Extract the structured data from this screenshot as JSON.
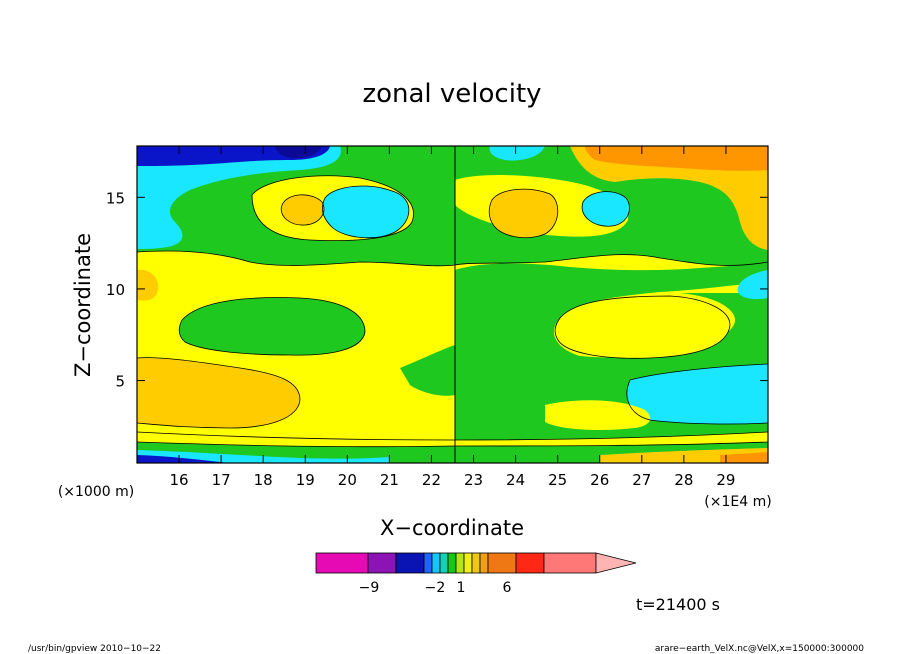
{
  "chart_data": {
    "type": "heatmap",
    "title": "zonal velocity",
    "xlabel": "X−coordinate",
    "ylabel": "Z−coordinate",
    "x_unit_label": "(×1E4 m)",
    "y_unit_label": "(×1000 m)",
    "xlim": [
      15,
      30
    ],
    "ylim": [
      0.5,
      17.8
    ],
    "x_ticks": [
      "16",
      "17",
      "18",
      "19",
      "20",
      "21",
      "22",
      "23",
      "24",
      "25",
      "26",
      "27",
      "28",
      "29"
    ],
    "y_ticks": [
      "5",
      "10",
      "15"
    ],
    "grid": false,
    "colorbar": {
      "labels": [
        "−9",
        "−2",
        "1",
        "6"
      ],
      "extend": "max",
      "colors": [
        "#e60ab4",
        "#8c14b4",
        "#0a14b4",
        "#1e64ff",
        "#14c8ff",
        "#14d2b4",
        "#14c814",
        "#b4e614",
        "#f0f014",
        "#f0c814",
        "#f0a014",
        "#f07814",
        "#ff2814",
        "#ff7878",
        "#ffb4b4"
      ]
    },
    "time_label": "t=21400 s"
  },
  "footer": {
    "left": "/usr/bin/gpview   2010−10−22",
    "right": "arare−earth_VelX.nc@VelX,x=150000:300000"
  },
  "colors": {
    "green": "#1ec81e",
    "yellow": "#ffff00",
    "cyan": "#19e6ff",
    "light_orange": "#ffcc00",
    "orange": "#ff9600",
    "blue": "#0a14c8",
    "darkblue": "#0a0a96"
  }
}
